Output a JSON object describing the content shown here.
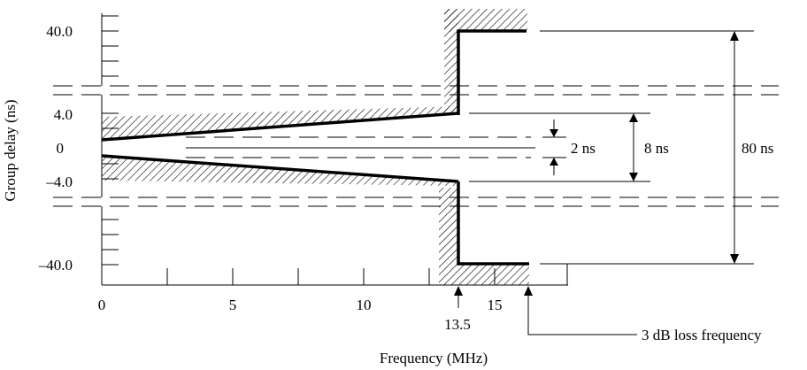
{
  "y_axis": {
    "label": "Group delay (ns)",
    "ticks": [
      "40.0",
      "4.0",
      "0",
      "–4.0",
      "–40.0"
    ]
  },
  "x_axis": {
    "label": "Frequency (MHz)",
    "ticks": [
      "0",
      "5",
      "10",
      "15"
    ],
    "marker_label": "13.5"
  },
  "annotations": {
    "two_ns": "2 ns",
    "eight_ns": "8 ns",
    "eighty_ns": "80 ns",
    "loss_freq": "3 dB loss frequency"
  }
}
